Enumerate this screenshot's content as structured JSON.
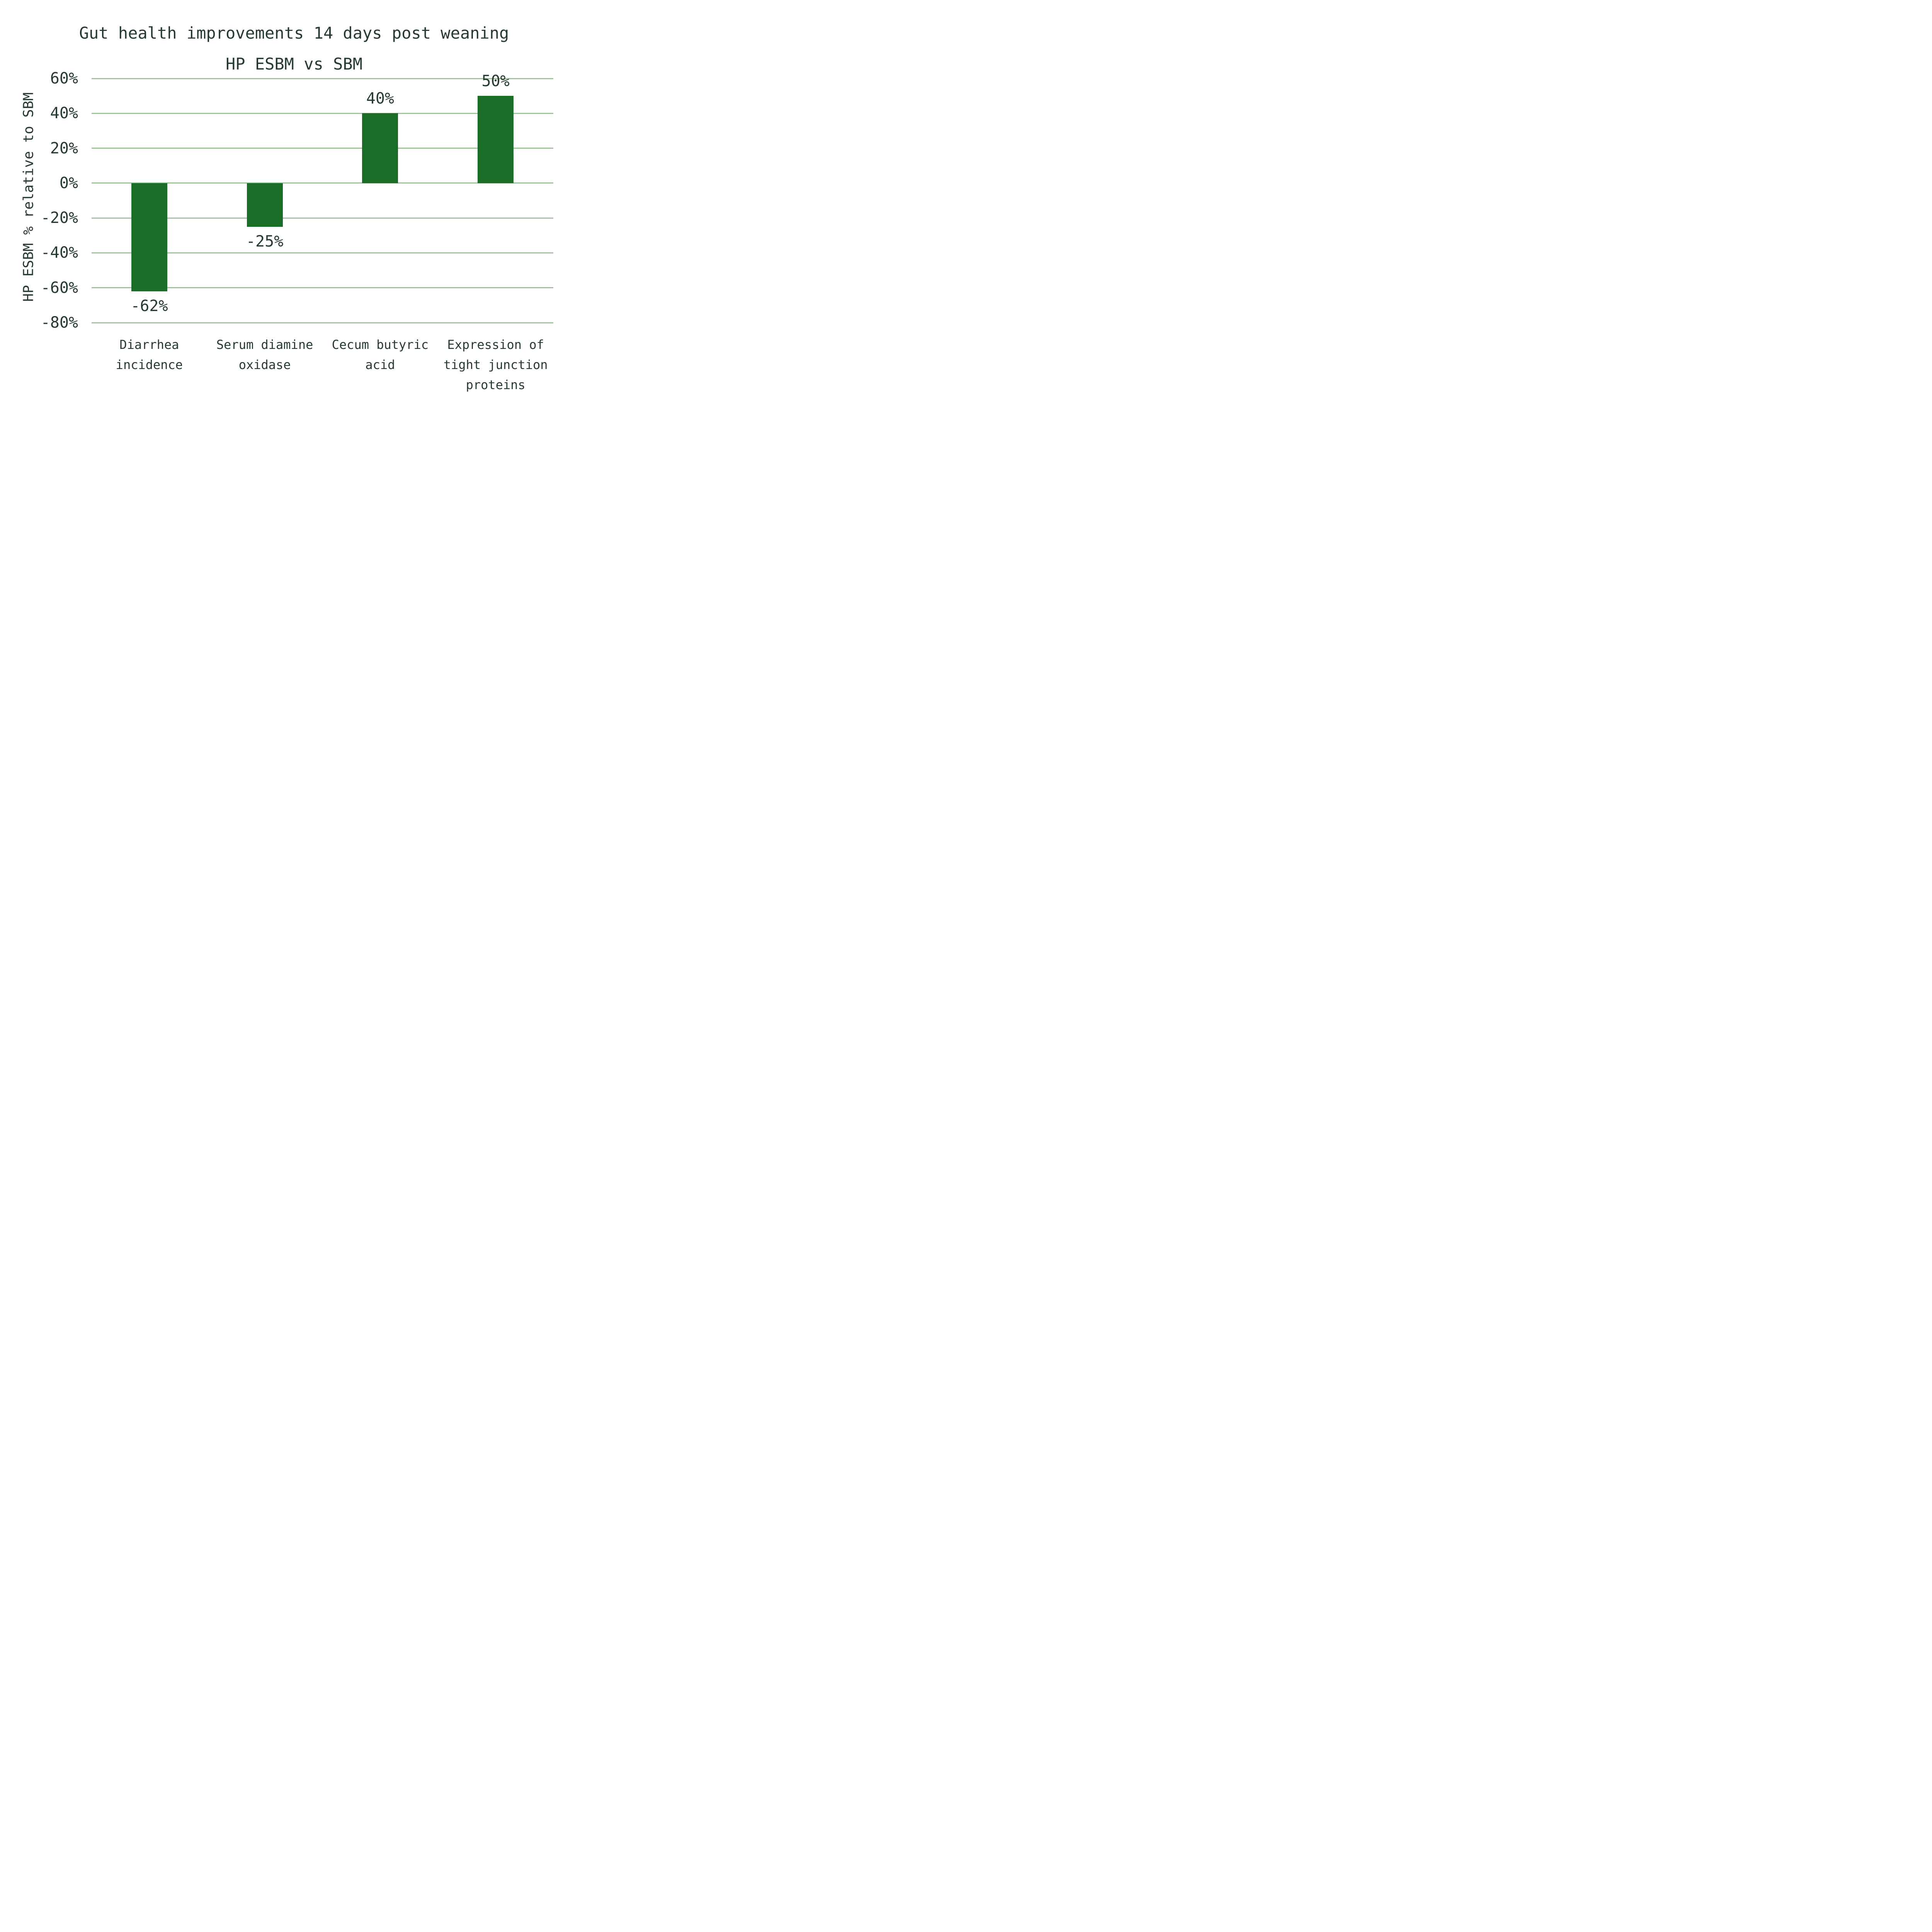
{
  "chart_data": {
    "type": "bar",
    "title": "Gut health improvements 14 days post weaning",
    "subtitle": "HP ESBM vs SBM",
    "ylabel": "HP ESBM % relative to SBM",
    "xlabel": "",
    "ylim": [
      -80,
      60
    ],
    "grid": "horizontal-only",
    "legend": "none",
    "yticks": [
      {
        "value": 60,
        "label": "60%"
      },
      {
        "value": 40,
        "label": "40%"
      },
      {
        "value": 20,
        "label": "20%"
      },
      {
        "value": 0,
        "label": "0%"
      },
      {
        "value": -20,
        "label": "-20%"
      },
      {
        "value": -40,
        "label": "-40%"
      },
      {
        "value": -60,
        "label": "-60%"
      },
      {
        "value": -80,
        "label": "-80%"
      }
    ],
    "categories": [
      "Diarrhea incidence",
      "Serum diamine oxidase",
      "Cecum butyric acid",
      "Expression of tight junction proteins"
    ],
    "bars": [
      {
        "name": "diarrhea-incidence",
        "label_lines": [
          "Diarrhea",
          "incidence"
        ],
        "value": -62,
        "value_label": "-62%"
      },
      {
        "name": "serum-diamine-oxidase",
        "label_lines": [
          "Serum diamine",
          "oxidase"
        ],
        "value": -25,
        "value_label": "-25%"
      },
      {
        "name": "cecum-butyric-acid",
        "label_lines": [
          "Cecum butyric",
          "acid"
        ],
        "value": 40,
        "value_label": "40%"
      },
      {
        "name": "tight-junction-proteins",
        "label_lines": [
          "Expression of",
          "tight junction",
          "proteins"
        ],
        "value": 50,
        "value_label": "50%"
      }
    ],
    "colors": {
      "bar": "#1b6c27",
      "text": "#263a30",
      "gridline": "#a2c19e",
      "background": "#ffffff"
    }
  }
}
